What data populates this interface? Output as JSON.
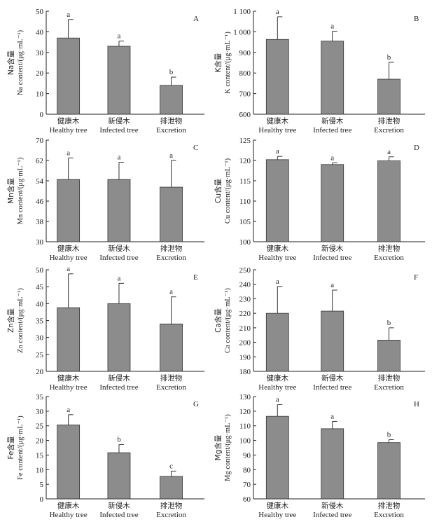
{
  "figure": {
    "categories_cn": [
      "健康木",
      "新侵木",
      "排泄物"
    ],
    "categories_en": [
      "Healthy tree",
      "Infected tree",
      "Excretion"
    ]
  },
  "chart_data": [
    {
      "type": "bar",
      "panel": "A",
      "ylabel_cn": "Na含量",
      "ylabel_en": "Na content/(μg·mL⁻¹)",
      "ylim": [
        0,
        50
      ],
      "yticks": [
        0,
        10,
        20,
        30,
        40,
        50
      ],
      "values": [
        37,
        33,
        14
      ],
      "errors": [
        9,
        2.5,
        4
      ],
      "significance": [
        "a",
        "a",
        "b"
      ]
    },
    {
      "type": "bar",
      "panel": "B",
      "ylabel_cn": "K含量",
      "ylabel_en": "K content/(μg·mL⁻¹)",
      "ylim": [
        600,
        1100
      ],
      "yticks": [
        600,
        700,
        800,
        900,
        1000,
        1100
      ],
      "yticklabels": [
        "600",
        "700",
        "800",
        "900",
        "1 000",
        "1 100"
      ],
      "values": [
        963,
        955,
        770
      ],
      "errors": [
        110,
        48,
        82
      ],
      "significance": [
        "a",
        "a",
        "b"
      ]
    },
    {
      "type": "bar",
      "panel": "C",
      "ylabel_cn": "Mn含量",
      "ylabel_en": "Mn content/(μg·mL⁻¹)",
      "ylim": [
        30,
        70
      ],
      "yticks": [
        30,
        38,
        46,
        54,
        62,
        70
      ],
      "values": [
        54.5,
        54.5,
        51.5
      ],
      "errors": [
        8.5,
        6.8,
        10.5
      ],
      "significance": [
        "a",
        "a",
        "a"
      ]
    },
    {
      "type": "bar",
      "panel": "D",
      "ylabel_cn": "Cu含量",
      "ylabel_en": "Cu content/(μg·mL⁻¹)",
      "ylim": [
        100,
        125
      ],
      "yticks": [
        100,
        105,
        110,
        115,
        120,
        125
      ],
      "values": [
        120.2,
        119,
        119.9
      ],
      "errors": [
        0.8,
        0.4,
        1.0
      ],
      "significance": [
        "a",
        "a",
        "a"
      ]
    },
    {
      "type": "bar",
      "panel": "E",
      "ylabel_cn": "Zn含量",
      "ylabel_en": "Zn content/(μg·mL⁻¹)",
      "ylim": [
        20,
        50
      ],
      "yticks": [
        20,
        25,
        30,
        35,
        40,
        45,
        50
      ],
      "values": [
        38.8,
        40,
        34
      ],
      "errors": [
        10,
        6,
        8
      ],
      "significance": [
        "a",
        "a",
        "a"
      ]
    },
    {
      "type": "bar",
      "panel": "F",
      "ylabel_cn": "Ca含量",
      "ylabel_en": "Ca content/(μg·mL⁻¹)",
      "ylim": [
        180,
        250
      ],
      "yticks": [
        180,
        190,
        200,
        210,
        220,
        230,
        240,
        250
      ],
      "values": [
        220,
        221.5,
        201.5
      ],
      "errors": [
        18.5,
        14.5,
        8.5
      ],
      "significance": [
        "a",
        "a",
        "b"
      ]
    },
    {
      "type": "bar",
      "panel": "G",
      "ylabel_cn": "Fe含量",
      "ylabel_en": "Fe content/(μg·mL⁻¹)",
      "ylim": [
        0,
        35
      ],
      "yticks": [
        0,
        5,
        10,
        15,
        20,
        25,
        30,
        35
      ],
      "values": [
        25.3,
        15.8,
        7.7
      ],
      "errors": [
        3.5,
        2.8,
        1.8
      ],
      "significance": [
        "a",
        "b",
        "c"
      ]
    },
    {
      "type": "bar",
      "panel": "H",
      "ylabel_cn": "Mg含量",
      "ylabel_en": "Mg content/(μg·mL⁻¹)",
      "ylim": [
        60,
        130
      ],
      "yticks": [
        60,
        70,
        80,
        90,
        100,
        110,
        120,
        130
      ],
      "values": [
        116.5,
        108,
        98.5
      ],
      "errors": [
        8,
        5,
        2
      ],
      "significance": [
        "a",
        "a",
        "b"
      ]
    }
  ]
}
